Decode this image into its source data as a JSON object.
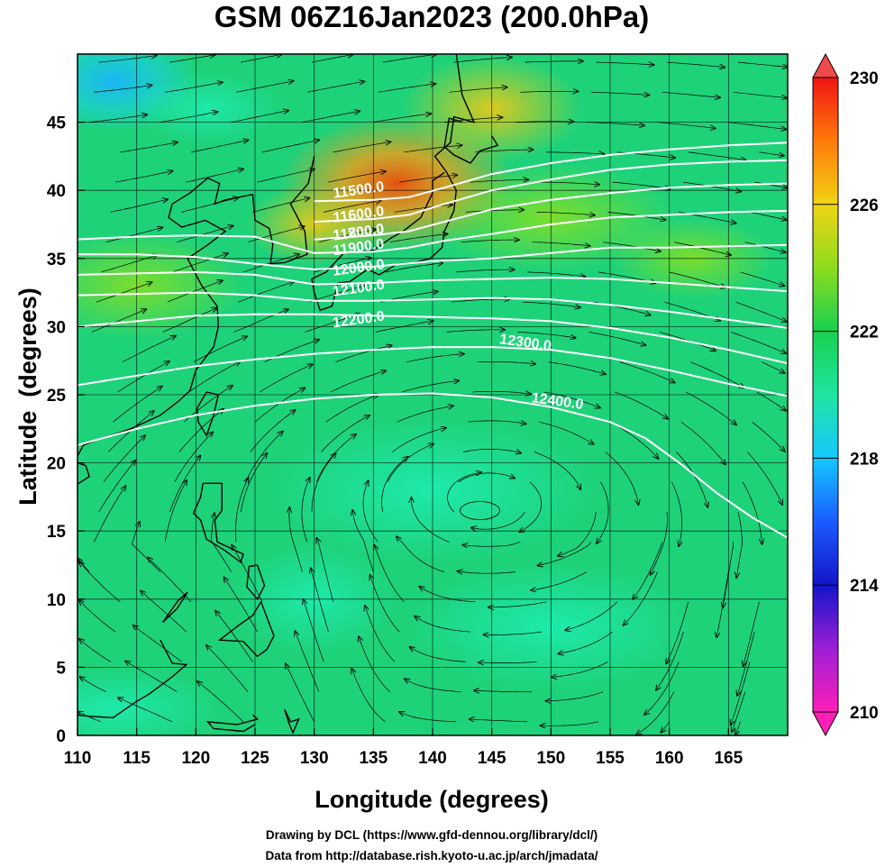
{
  "title": "GSM 06Z16Jan2023 (200.0hPa)",
  "credits": {
    "line1": "Drawing by DCL (https://www.gfd-dennou.org/library/dcl/)",
    "line2": "Data from http://database.rish.kyoto-u.ac.jp/arch/jmadata/"
  },
  "chart_data": {
    "type": "heatmap",
    "title": "GSM 06Z16Jan2023 (200.0hPa)",
    "xlabel": "Longitude (degrees)",
    "ylabel": "Latitude  (degrees)",
    "xlim": [
      110,
      170
    ],
    "ylim": [
      0,
      50
    ],
    "xticks": [
      110,
      115,
      120,
      125,
      130,
      135,
      140,
      145,
      150,
      155,
      160,
      165
    ],
    "yticks": [
      0,
      5,
      10,
      15,
      20,
      25,
      30,
      35,
      40,
      45
    ],
    "grid": true,
    "colorbar": {
      "min": 210,
      "max": 230,
      "labels": [
        210,
        214,
        218,
        222,
        226,
        230
      ],
      "colors": [
        "#ff1fb8",
        "#9b1fd6",
        "#1414c8",
        "#1a5cff",
        "#14c8ff",
        "#1ee6a0",
        "#18d050",
        "#8cdc1e",
        "#f0d414",
        "#ff7a0a",
        "#f01414"
      ]
    },
    "temperature_field_description_points": [
      {
        "lon": 136,
        "lat": 41,
        "value": 229
      },
      {
        "lon": 120,
        "lat": 48,
        "value": 218
      },
      {
        "lon": 130,
        "lat": 38,
        "value": 227
      },
      {
        "lon": 145,
        "lat": 36,
        "value": 224
      },
      {
        "lon": 140,
        "lat": 17,
        "value": 219
      },
      {
        "lon": 160,
        "lat": 10,
        "value": 222
      },
      {
        "lon": 115,
        "lat": 2,
        "value": 219
      }
    ],
    "contour_label_values": [
      "11500.0",
      "11600.0",
      "11700.0",
      "11800.0",
      "11900.0",
      "12000.0",
      "12100.0",
      "12200.0",
      "12300.0",
      "12400.0"
    ],
    "contours": [
      {
        "level": "11500.0",
        "points": [
          [
            130,
            39.2
          ],
          [
            135,
            39.3
          ],
          [
            138,
            39.5
          ],
          [
            141,
            40.2
          ],
          [
            145,
            41.2
          ],
          [
            150,
            42.0
          ],
          [
            155,
            42.6
          ],
          [
            160,
            43.0
          ],
          [
            165,
            43.3
          ],
          [
            170,
            43.5
          ]
        ]
      },
      {
        "level": "11600.0",
        "points": [
          [
            130,
            37.7
          ],
          [
            135,
            37.9
          ],
          [
            138,
            38.2
          ],
          [
            141,
            39.0
          ],
          [
            145,
            40.0
          ],
          [
            150,
            40.8
          ],
          [
            155,
            41.5
          ],
          [
            160,
            41.9
          ],
          [
            165,
            42.1
          ],
          [
            170,
            42.2
          ]
        ]
      },
      {
        "level": "11700.0",
        "points": [
          [
            130,
            36.4
          ],
          [
            135,
            36.7
          ],
          [
            138,
            37.0
          ],
          [
            141,
            37.7
          ],
          [
            145,
            38.6
          ],
          [
            150,
            39.3
          ],
          [
            155,
            39.8
          ],
          [
            160,
            40.2
          ],
          [
            165,
            40.4
          ],
          [
            170,
            40.5
          ]
        ]
      },
      {
        "level": "11800.0",
        "points": [
          [
            110,
            36.4
          ],
          [
            115,
            36.6
          ],
          [
            120,
            36.7
          ],
          [
            125,
            36.6
          ],
          [
            130,
            35.4
          ],
          [
            135,
            35.5
          ],
          [
            138,
            35.8
          ],
          [
            141,
            36.3
          ],
          [
            145,
            36.8
          ],
          [
            150,
            37.5
          ],
          [
            155,
            38.0
          ],
          [
            160,
            38.2
          ],
          [
            165,
            38.4
          ],
          [
            170,
            38.5
          ]
        ]
      },
      {
        "level": "11900.0",
        "points": [
          [
            110,
            35.3
          ],
          [
            115,
            35.3
          ],
          [
            120,
            35.1
          ],
          [
            125,
            34.6
          ],
          [
            130,
            34.2
          ],
          [
            135,
            34.4
          ],
          [
            140,
            34.8
          ],
          [
            145,
            35.0
          ],
          [
            150,
            35.4
          ],
          [
            155,
            35.8
          ],
          [
            160,
            35.8
          ],
          [
            165,
            35.9
          ],
          [
            170,
            36.0
          ]
        ]
      },
      {
        "level": "12000.0",
        "points": [
          [
            110,
            33.8
          ],
          [
            115,
            33.9
          ],
          [
            120,
            34.0
          ],
          [
            125,
            33.8
          ],
          [
            130,
            33.1
          ],
          [
            135,
            33.2
          ],
          [
            140,
            33.4
          ],
          [
            145,
            33.5
          ],
          [
            150,
            33.6
          ],
          [
            155,
            33.5
          ],
          [
            160,
            33.2
          ],
          [
            165,
            32.9
          ],
          [
            170,
            32.6
          ]
        ]
      },
      {
        "level": "12100.0",
        "points": [
          [
            110,
            32.3
          ],
          [
            115,
            32.4
          ],
          [
            120,
            32.5
          ],
          [
            125,
            32.3
          ],
          [
            130,
            31.9
          ],
          [
            135,
            31.9
          ],
          [
            140,
            32.0
          ],
          [
            145,
            32.1
          ],
          [
            150,
            32.0
          ],
          [
            155,
            31.6
          ],
          [
            160,
            31.1
          ],
          [
            165,
            30.5
          ],
          [
            170,
            29.9
          ]
        ]
      },
      {
        "level": "12200.0",
        "points": [
          [
            110,
            30.0
          ],
          [
            115,
            30.4
          ],
          [
            120,
            30.8
          ],
          [
            125,
            30.9
          ],
          [
            130,
            30.9
          ],
          [
            135,
            30.8
          ],
          [
            140,
            30.7
          ],
          [
            145,
            30.6
          ],
          [
            150,
            30.4
          ],
          [
            155,
            29.9
          ],
          [
            160,
            29.2
          ],
          [
            165,
            28.3
          ],
          [
            170,
            27.3
          ]
        ]
      },
      {
        "level": "12300.0",
        "points": [
          [
            110,
            25.7
          ],
          [
            115,
            26.4
          ],
          [
            120,
            27.1
          ],
          [
            125,
            27.6
          ],
          [
            130,
            28.0
          ],
          [
            135,
            28.3
          ],
          [
            140,
            28.5
          ],
          [
            145,
            28.5
          ],
          [
            150,
            28.3
          ],
          [
            155,
            27.7
          ],
          [
            160,
            26.8
          ],
          [
            165,
            25.8
          ],
          [
            170,
            24.9
          ]
        ]
      },
      {
        "level": "12400.0",
        "points": [
          [
            110,
            21.3
          ],
          [
            115,
            22.5
          ],
          [
            120,
            23.5
          ],
          [
            125,
            24.2
          ],
          [
            130,
            24.7
          ],
          [
            135,
            25.0
          ],
          [
            140,
            25.1
          ],
          [
            145,
            24.8
          ],
          [
            150,
            24.1
          ],
          [
            155,
            23.0
          ],
          [
            158,
            21.8
          ],
          [
            161,
            19.9
          ],
          [
            164,
            17.8
          ],
          [
            167,
            16.0
          ],
          [
            170,
            14.5
          ]
        ]
      }
    ],
    "anticyclone_center": {
      "lon": 144,
      "lat": 16.5
    },
    "label_positions_note": "contour labels drawn along lines"
  }
}
